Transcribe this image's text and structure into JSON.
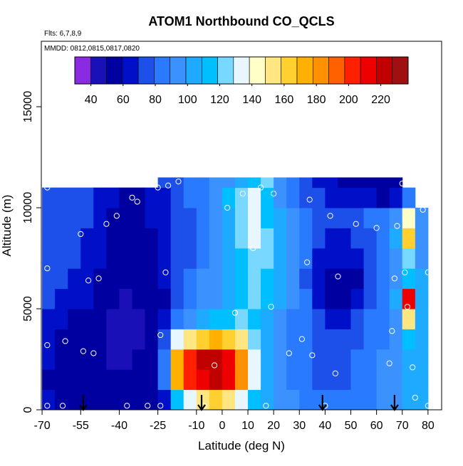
{
  "chart_data": {
    "type": "heatmap",
    "title": "ATOM1 Northbound CO_QCLS",
    "subtitle": "Flts: 6,7,8,9",
    "annotation": "MMDD: 0812,0815,0817,0820",
    "x_label": "Latitude (deg N)",
    "y_label": "Altitude (m)",
    "xlim": [
      -70.3,
      85.3
    ],
    "ylim": [
      0,
      18240
    ],
    "xticks": [
      -70,
      -55,
      -40,
      -25,
      -10,
      0,
      10,
      20,
      30,
      40,
      50,
      60,
      70,
      80
    ],
    "yticks": [
      0,
      5000,
      10000,
      15000
    ],
    "x_edges": [
      -70,
      -65,
      -60,
      -55,
      -50,
      -45,
      -40,
      -35,
      -30,
      -25,
      -20,
      -15,
      -10,
      -5,
      0,
      5,
      10,
      15,
      20,
      25,
      30,
      35,
      40,
      45,
      50,
      55,
      60,
      65,
      70,
      75,
      80
    ],
    "y_edges": [
      0,
      1000,
      2000,
      3000,
      4000,
      5000,
      6000,
      7000,
      8000,
      9000,
      10000,
      11000,
      11500
    ],
    "z": [
      [
        60,
        58,
        55,
        55,
        52,
        52,
        50,
        50,
        55,
        65,
        110,
        130,
        150,
        160,
        150,
        130,
        115,
        100,
        95,
        90,
        85,
        80,
        80,
        80,
        80,
        85,
        90,
        95,
        100,
        100
      ],
      [
        58,
        55,
        52,
        52,
        50,
        50,
        50,
        52,
        55,
        80,
        170,
        200,
        215,
        225,
        210,
        180,
        130,
        100,
        92,
        88,
        82,
        78,
        78,
        78,
        80,
        85,
        90,
        95,
        100,
        100
      ],
      [
        60,
        55,
        52,
        50,
        50,
        48,
        48,
        50,
        55,
        85,
        175,
        205,
        220,
        225,
        215,
        185,
        135,
        100,
        90,
        85,
        80,
        75,
        75,
        78,
        80,
        85,
        90,
        95,
        105,
        100
      ],
      [
        62,
        58,
        55,
        52,
        50,
        48,
        45,
        48,
        52,
        70,
        130,
        155,
        165,
        170,
        160,
        150,
        125,
        100,
        90,
        85,
        80,
        72,
        70,
        72,
        78,
        82,
        88,
        95,
        110,
        100
      ],
      [
        65,
        62,
        58,
        55,
        52,
        48,
        45,
        45,
        50,
        60,
        85,
        95,
        100,
        110,
        115,
        120,
        118,
        105,
        95,
        88,
        80,
        70,
        65,
        65,
        72,
        80,
        85,
        95,
        150,
        100
      ],
      [
        70,
        68,
        65,
        60,
        55,
        50,
        48,
        50,
        52,
        58,
        75,
        82,
        90,
        98,
        105,
        115,
        122,
        115,
        100,
        90,
        80,
        65,
        58,
        55,
        60,
        72,
        82,
        100,
        215,
        100
      ],
      [
        72,
        70,
        68,
        62,
        58,
        52,
        50,
        52,
        55,
        60,
        72,
        80,
        90,
        98,
        105,
        118,
        125,
        118,
        102,
        92,
        78,
        62,
        55,
        55,
        58,
        70,
        80,
        90,
        110,
        100
      ],
      [
        75,
        72,
        70,
        65,
        60,
        55,
        52,
        55,
        58,
        62,
        70,
        78,
        88,
        96,
        105,
        118,
        128,
        120,
        105,
        92,
        80,
        68,
        62,
        62,
        65,
        72,
        82,
        95,
        120,
        95
      ],
      [
        78,
        76,
        72,
        68,
        62,
        56,
        52,
        55,
        58,
        62,
        70,
        76,
        85,
        95,
        105,
        120,
        130,
        120,
        105,
        92,
        82,
        72,
        68,
        68,
        72,
        78,
        85,
        100,
        160,
        95
      ],
      [
        78,
        76,
        74,
        70,
        64,
        58,
        54,
        56,
        60,
        65,
        72,
        78,
        86,
        96,
        108,
        125,
        132,
        118,
        100,
        90,
        82,
        75,
        72,
        72,
        75,
        80,
        85,
        95,
        140,
        90
      ],
      [
        76,
        75,
        74,
        72,
        66,
        60,
        56,
        58,
        62,
        68,
        75,
        80,
        88,
        98,
        112,
        128,
        135,
        115,
        95,
        85,
        78,
        72,
        68,
        65,
        62,
        60,
        58,
        60,
        80,
        null
      ],
      [
        null,
        null,
        null,
        null,
        null,
        null,
        null,
        null,
        null,
        70,
        75,
        80,
        85,
        90,
        95,
        100,
        110,
        120,
        95,
        85,
        75,
        65,
        60,
        55,
        52,
        50,
        50,
        52,
        null,
        null
      ]
    ],
    "colorbar": {
      "zlim": [
        30,
        237
      ],
      "zticks": [
        40,
        60,
        80,
        100,
        120,
        140,
        160,
        180,
        200,
        220
      ],
      "colors": [
        "#8a2be2",
        "#1a10b8",
        "#0000a0",
        "#0010c8",
        "#1c50e8",
        "#2a7aff",
        "#3b92ff",
        "#1eaaff",
        "#00bfff",
        "#78d8ff",
        "#e8f6ff",
        "#ffffc8",
        "#ffe680",
        "#ffd030",
        "#ffb000",
        "#ff9000",
        "#ff6000",
        "#ff2000",
        "#ee0000",
        "#c00000",
        "#a01010"
      ]
    },
    "points": {
      "color": "#ffffff",
      "x": [
        -68,
        -68,
        -68,
        -68,
        -62,
        -61,
        -55,
        -54,
        -52,
        -50,
        -48,
        -45,
        -41,
        -37,
        -35,
        -33,
        -29,
        -25,
        -24,
        -24,
        -22,
        -21,
        -17,
        -7,
        -3,
        2,
        5,
        8,
        12,
        15,
        17,
        19,
        20,
        26,
        31,
        33,
        34,
        35,
        40,
        42,
        44,
        45,
        52,
        60,
        65,
        66,
        67,
        68,
        70,
        71,
        72,
        74,
        75,
        78,
        80,
        80
      ],
      "y": [
        11000,
        7000,
        3200,
        200,
        200,
        3400,
        8700,
        2900,
        6400,
        2800,
        6500,
        9200,
        9600,
        200,
        10500,
        10300,
        200,
        11000,
        200,
        3700,
        6800,
        11100,
        11300,
        200,
        2200,
        10000,
        4800,
        10700,
        8000,
        11000,
        200,
        5100,
        10700,
        2800,
        3500,
        7300,
        10400,
        2700,
        200,
        9600,
        1800,
        6600,
        9200,
        9000,
        2300,
        3900,
        6500,
        9100,
        11200,
        6800,
        5100,
        2100,
        600,
        9900,
        200,
        6800
      ]
    },
    "arrows": {
      "color": "#000000",
      "x": [
        -54,
        -8,
        39,
        67
      ]
    }
  }
}
